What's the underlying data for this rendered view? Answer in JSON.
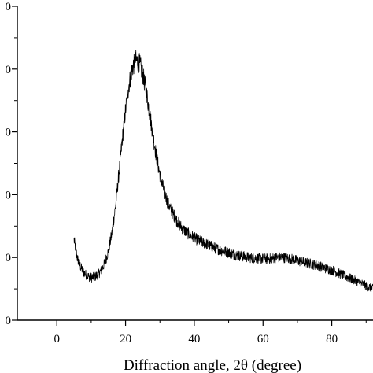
{
  "chart_data": {
    "type": "line",
    "title": "",
    "xlabel": "Diffraction angle, 2θ (degree)",
    "ylabel": "",
    "xlim": [
      -11.5,
      92
    ],
    "ylim": [
      0,
      5
    ],
    "x_ticks": [
      0,
      20,
      40,
      60,
      80
    ],
    "x_tick_labels": [
      "0",
      "20",
      "40",
      "60",
      "80"
    ],
    "y_ticks": [
      0,
      1,
      2,
      3,
      4,
      5
    ],
    "y_tick_labels": [
      "0",
      "0",
      "0",
      "0",
      "0",
      "0"
    ],
    "grid": false,
    "legend": "none",
    "line_color": "#000000",
    "series": [
      {
        "x": [
          5,
          6,
          7,
          8,
          9,
          10,
          11,
          12,
          13,
          14,
          15,
          16,
          17,
          18,
          19,
          20,
          21,
          22,
          23,
          24,
          25,
          26,
          27,
          28,
          29,
          30,
          31,
          32,
          33,
          34,
          35,
          36,
          37,
          38,
          39,
          40,
          42,
          44,
          46,
          48,
          50,
          52,
          54,
          56,
          58,
          60,
          62,
          64,
          66,
          68,
          70,
          72,
          74,
          76,
          78,
          80,
          82,
          84,
          86,
          88,
          90,
          92
        ],
        "y": [
          1.28,
          0.98,
          0.84,
          0.75,
          0.7,
          0.68,
          0.69,
          0.73,
          0.8,
          0.92,
          1.1,
          1.38,
          1.78,
          2.3,
          2.85,
          3.35,
          3.75,
          4.02,
          4.15,
          4.1,
          3.92,
          3.65,
          3.3,
          2.95,
          2.6,
          2.32,
          2.1,
          1.92,
          1.78,
          1.68,
          1.58,
          1.5,
          1.44,
          1.39,
          1.35,
          1.31,
          1.25,
          1.2,
          1.15,
          1.11,
          1.08,
          1.04,
          1.02,
          1.0,
          0.99,
          0.98,
          0.98,
          1.0,
          1.0,
          0.98,
          0.95,
          0.92,
          0.9,
          0.87,
          0.83,
          0.8,
          0.75,
          0.7,
          0.65,
          0.6,
          0.55,
          0.5
        ]
      }
    ]
  }
}
